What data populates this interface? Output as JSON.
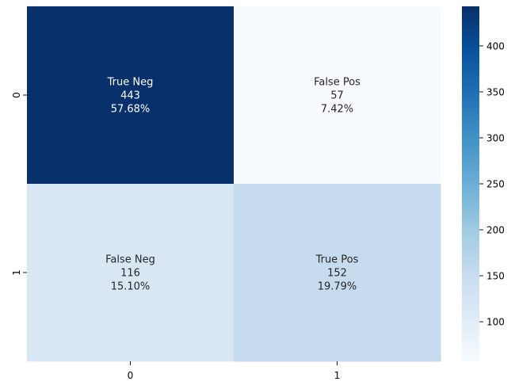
{
  "chart_data": {
    "type": "heatmap",
    "title": "",
    "xlabel": "",
    "ylabel": "",
    "x_categories": [
      "0",
      "1"
    ],
    "y_categories": [
      "0",
      "1"
    ],
    "values": [
      [
        443,
        57
      ],
      [
        116,
        152
      ]
    ],
    "cell_labels": [
      [
        [
          "True Neg",
          "443",
          "57.68%"
        ],
        [
          "False Pos",
          "57",
          "7.42%"
        ]
      ],
      [
        [
          "False Neg",
          "116",
          "15.10%"
        ],
        [
          "True Pos",
          "152",
          "19.79%"
        ]
      ]
    ],
    "colormap": "Blues",
    "vmin": 57,
    "vmax": 443,
    "colorbar": {
      "ticks": [
        100,
        150,
        200,
        250,
        300,
        350,
        400
      ],
      "tick_labels": [
        "100",
        "150",
        "200",
        "250",
        "300",
        "350",
        "400"
      ]
    }
  }
}
